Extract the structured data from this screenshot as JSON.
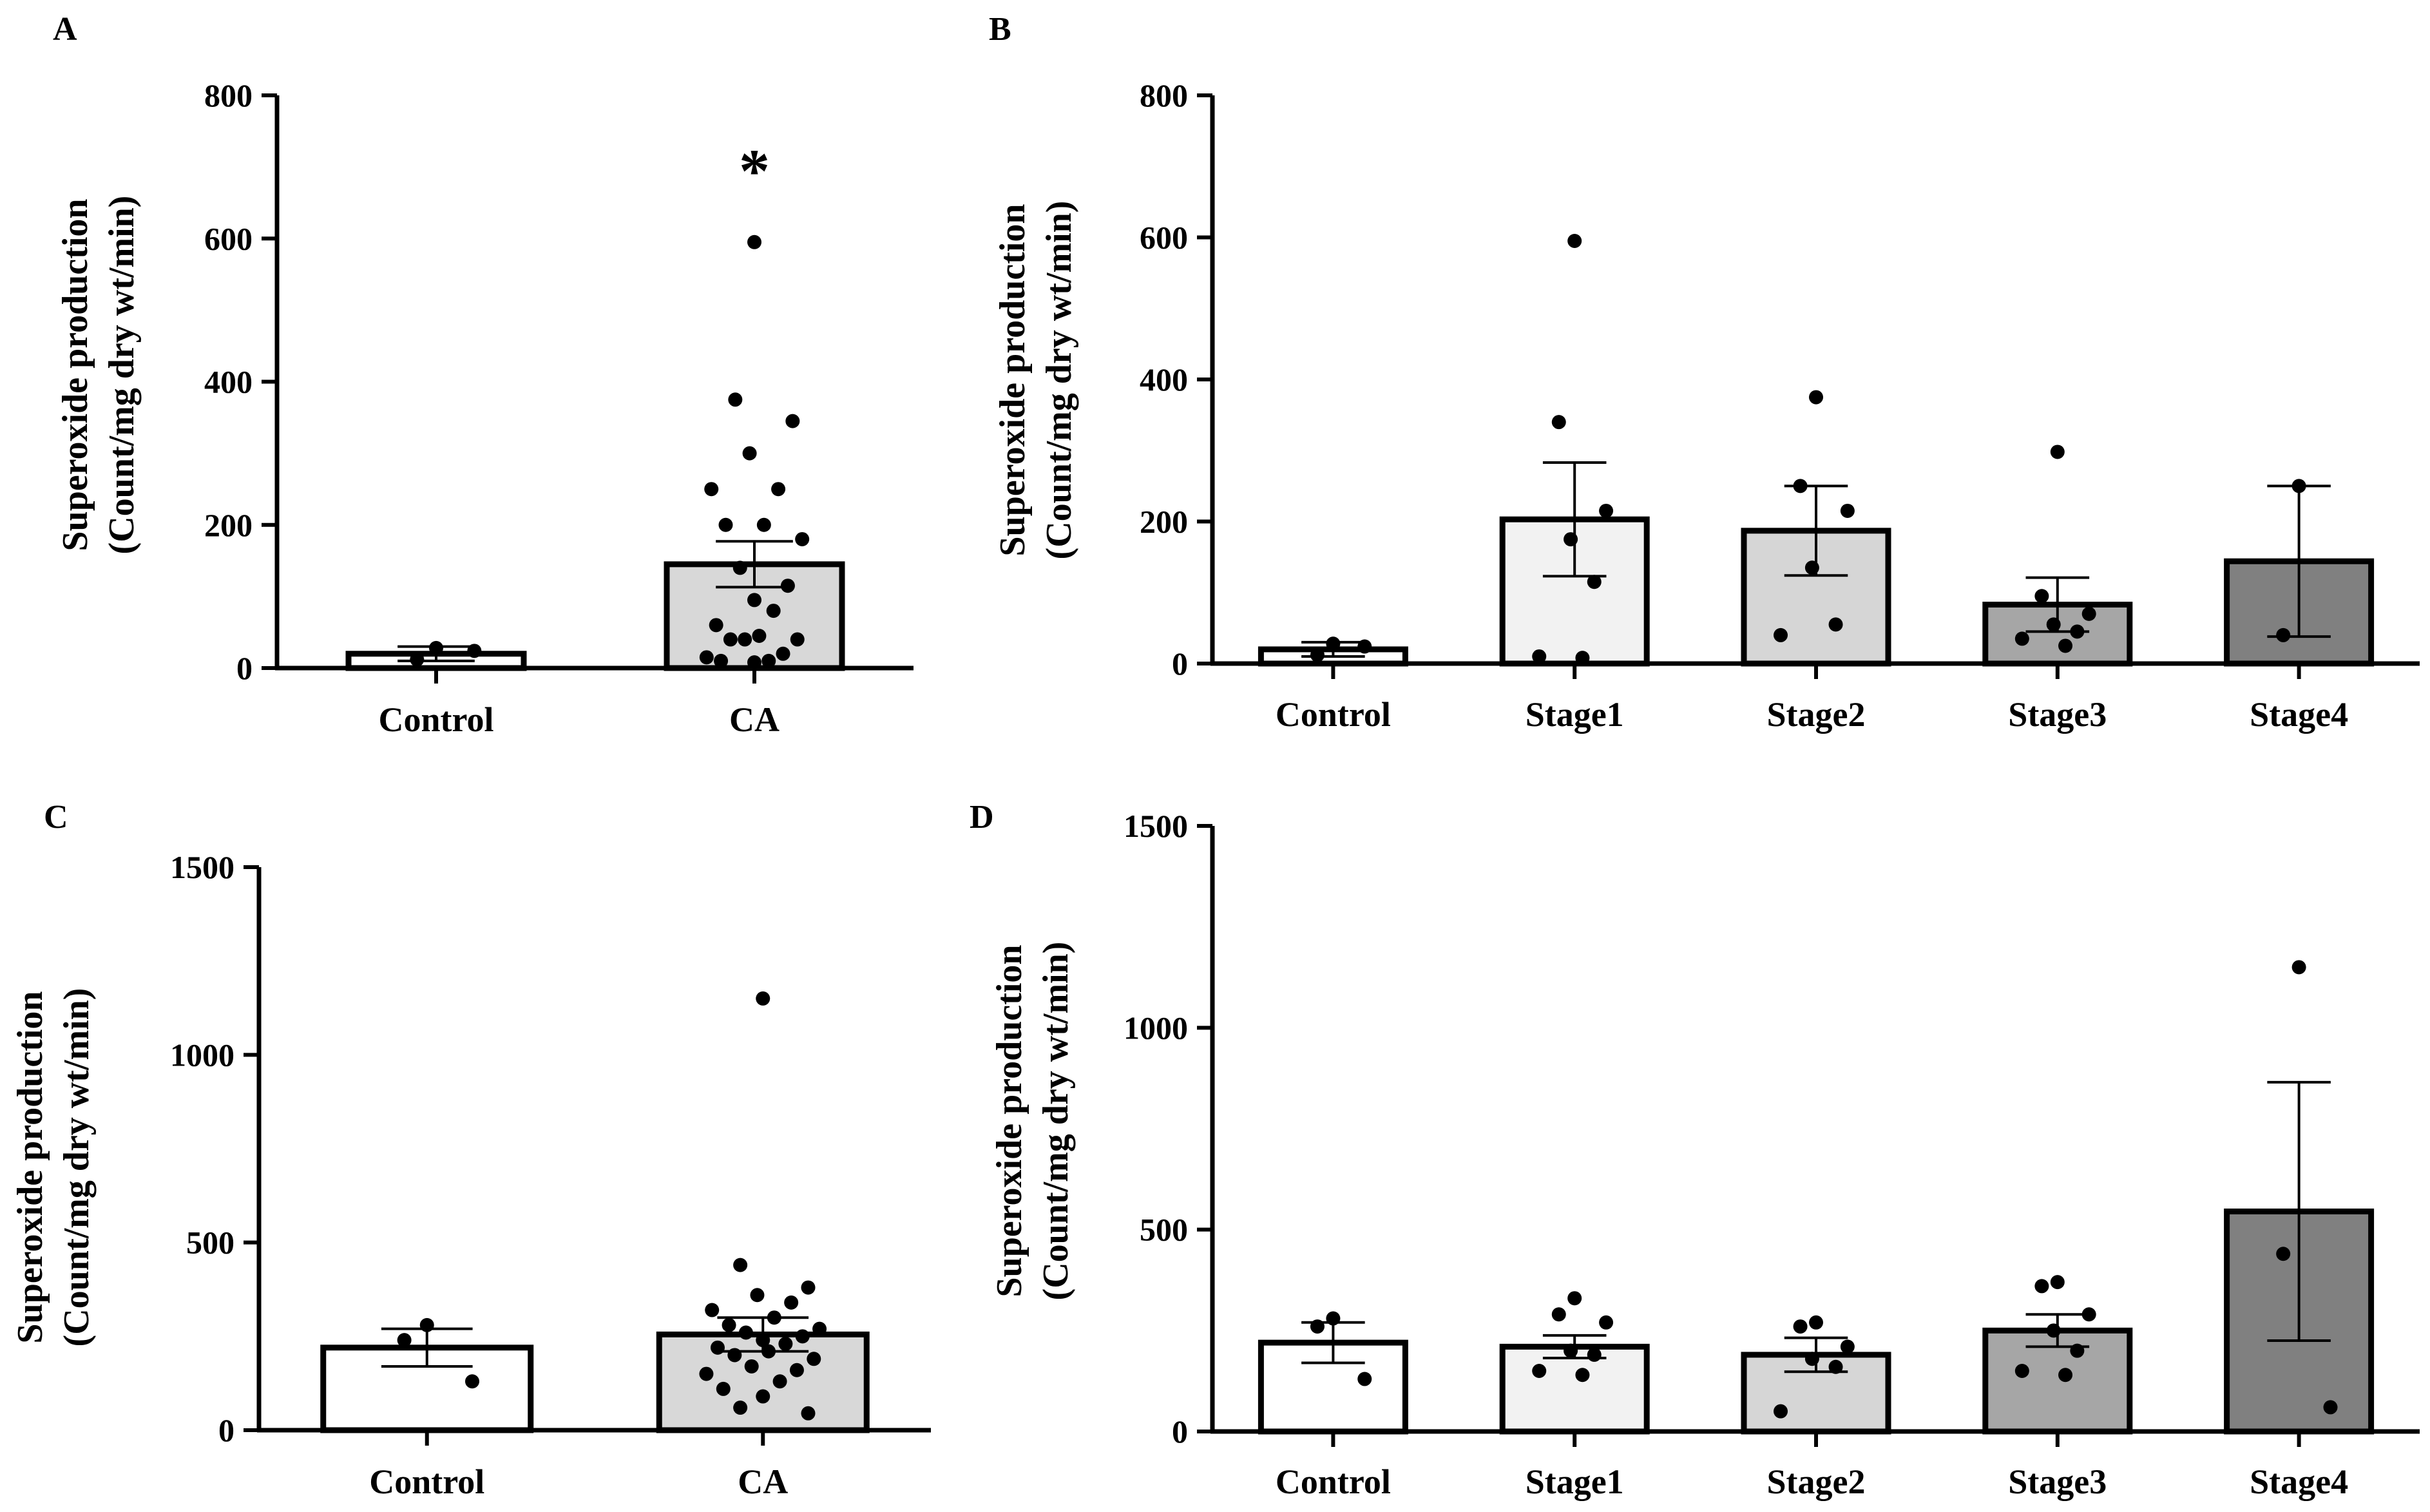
{
  "figure": {
    "panels": [
      {
        "id": "A",
        "letter": "A",
        "ylabel_line1": "Superoxide production",
        "ylabel_line2": "(Count/mg dry wt/min)"
      },
      {
        "id": "B",
        "letter": "B",
        "ylabel_line1": "Superoxide production",
        "ylabel_line2": "(Count/mg dry wt/min)"
      },
      {
        "id": "C",
        "letter": "C",
        "ylabel_line1": "Superoxide production",
        "ylabel_line2": "(Count/mg dry wt/min)"
      },
      {
        "id": "D",
        "letter": "D",
        "ylabel_line1": "Superoxide production",
        "ylabel_line2": "(Count/mg dry wt/min)"
      }
    ]
  },
  "chart_data": [
    {
      "panel": "A",
      "type": "bar",
      "title": "",
      "xlabel": "",
      "ylabel": "Superoxide production (Count/mg dry wt/min)",
      "ylim": [
        0,
        800
      ],
      "yticks": [
        0,
        200,
        400,
        600,
        800
      ],
      "grid": false,
      "categories": [
        "Control",
        "CA"
      ],
      "values": [
        20,
        145
      ],
      "sem": [
        10,
        32
      ],
      "fills": [
        "#ffffff",
        "#d8d8d8"
      ],
      "points": [
        [
          28,
          12,
          24
        ],
        [
          595,
          375,
          345,
          300,
          250,
          250,
          200,
          200,
          180,
          140,
          115,
          95,
          80,
          60,
          45,
          40,
          40,
          40,
          20,
          15,
          10,
          10,
          8
        ]
      ],
      "significance": [
        "",
        "*"
      ]
    },
    {
      "panel": "B",
      "type": "bar",
      "title": "",
      "xlabel": "",
      "ylabel": "Superoxide production (Count/mg dry wt/min)",
      "ylim": [
        0,
        800
      ],
      "yticks": [
        0,
        200,
        400,
        600,
        800
      ],
      "grid": false,
      "categories": [
        "Control",
        "Stage1",
        "Stage2",
        "Stage3",
        "Stage4"
      ],
      "values": [
        20,
        203,
        187,
        83,
        144
      ],
      "sem": [
        10,
        80,
        63,
        38,
        106
      ],
      "fills": [
        "#ffffff",
        "#f2f2f2",
        "#d6d6d6",
        "#a6a6a6",
        "#808080"
      ],
      "points": [
        [
          28,
          12,
          24
        ],
        [
          595,
          340,
          215,
          175,
          115,
          10,
          8
        ],
        [
          375,
          250,
          215,
          135,
          55,
          40
        ],
        [
          298,
          95,
          70,
          55,
          45,
          35,
          25
        ],
        [
          250,
          40
        ]
      ],
      "significance": [
        "",
        "",
        "",
        "",
        ""
      ]
    },
    {
      "panel": "C",
      "type": "bar",
      "title": "",
      "xlabel": "",
      "ylabel": "Superoxide production (Count/mg dry wt/min)",
      "ylim": [
        0,
        1500
      ],
      "yticks": [
        0,
        500,
        1000,
        1500
      ],
      "grid": false,
      "categories": [
        "Control",
        "CA"
      ],
      "values": [
        220,
        255
      ],
      "sem": [
        50,
        45
      ],
      "fills": [
        "#ffffff",
        "#d8d8d8"
      ],
      "points": [
        [
          280,
          240,
          130
        ],
        [
          1150,
          440,
          380,
          360,
          340,
          320,
          300,
          280,
          270,
          260,
          250,
          240,
          230,
          220,
          210,
          200,
          190,
          170,
          160,
          150,
          130,
          110,
          90,
          60,
          45
        ]
      ],
      "significance": [
        "",
        ""
      ]
    },
    {
      "panel": "D",
      "type": "bar",
      "title": "",
      "xlabel": "",
      "ylabel": "Superoxide production (Count/mg dry wt/min)",
      "ylim": [
        0,
        1500
      ],
      "yticks": [
        0,
        500,
        1000,
        1500
      ],
      "grid": false,
      "categories": [
        "Control",
        "Stage1",
        "Stage2",
        "Stage3",
        "Stage4"
      ],
      "values": [
        220,
        210,
        190,
        250,
        545
      ],
      "sem": [
        50,
        28,
        42,
        40,
        320
      ],
      "fills": [
        "#ffffff",
        "#f2f2f2",
        "#d6d6d6",
        "#a6a6a6",
        "#808080"
      ],
      "points": [
        [
          280,
          260,
          130
        ],
        [
          330,
          290,
          270,
          200,
          190,
          150,
          140
        ],
        [
          270,
          260,
          210,
          180,
          160,
          50
        ],
        [
          370,
          360,
          290,
          250,
          200,
          150,
          140
        ],
        [
          1150,
          440,
          60
        ]
      ],
      "significance": [
        "",
        "",
        "",
        "",
        ""
      ]
    }
  ]
}
